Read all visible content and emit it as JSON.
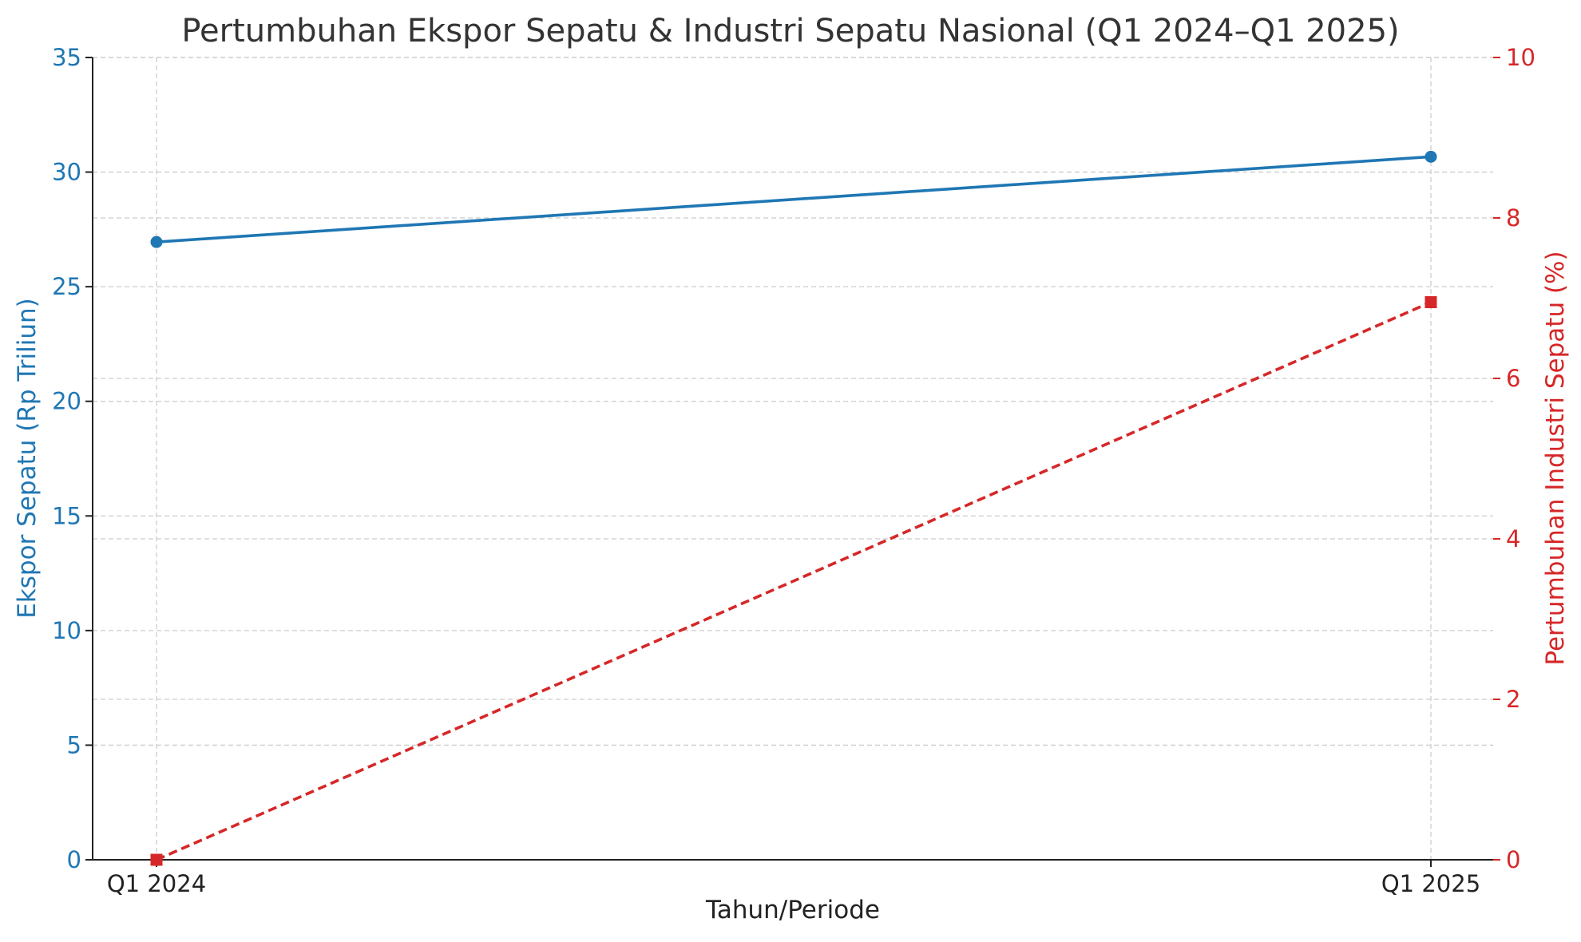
{
  "chart_data": {
    "type": "line",
    "title": "Pertumbuhan Ekspor Sepatu & Industri Sepatu Nasional (Q1 2024–Q1 2025)",
    "xlabel": "Tahun/Periode",
    "categories": [
      "Q1 2024",
      "Q1 2025"
    ],
    "y_left": {
      "label": "Ekspor Sepatu (Rp Triliun)",
      "ylim": [
        0,
        35
      ],
      "ticks": [
        0,
        5,
        10,
        15,
        20,
        25,
        30,
        35
      ],
      "color": "#1f77b4"
    },
    "y_right": {
      "label": "Pertumbuhan Industri Sepatu (%)",
      "ylim": [
        0,
        10
      ],
      "ticks": [
        0,
        2,
        4,
        6,
        8,
        10
      ],
      "color": "#d62728"
    },
    "series": [
      {
        "axis": "left",
        "values": [
          26.95,
          30.67
        ],
        "color": "#1f77b4",
        "line_style": "solid",
        "marker": "circle"
      },
      {
        "axis": "right",
        "values": [
          0,
          6.95
        ],
        "color": "#d62728",
        "line_style": "dashed",
        "marker": "square"
      }
    ],
    "grid": true
  }
}
